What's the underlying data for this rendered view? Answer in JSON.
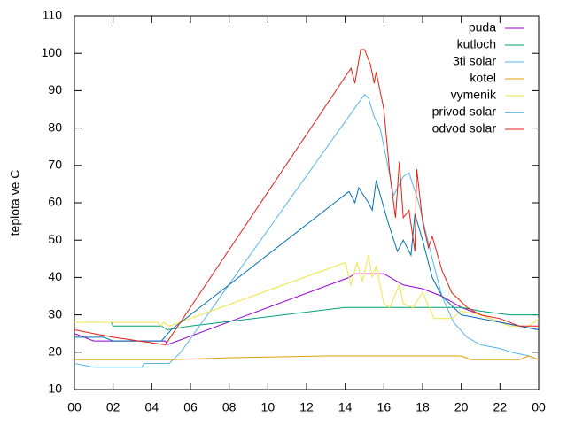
{
  "chart_data": {
    "type": "line",
    "y_label": "teplota ve C",
    "xlim": [
      0,
      24
    ],
    "xticks": [
      {
        "value": 0,
        "label": "00"
      },
      {
        "value": 2,
        "label": "02"
      },
      {
        "value": 4,
        "label": "04"
      },
      {
        "value": 6,
        "label": "06"
      },
      {
        "value": 8,
        "label": "08"
      },
      10,
      12,
      14,
      16,
      18,
      20,
      22,
      {
        "value": 24,
        "label": "00"
      }
    ],
    "ylim": [
      10,
      110
    ],
    "yticks": [
      10,
      20,
      30,
      40,
      50,
      60,
      70,
      80,
      90,
      100,
      110
    ],
    "legend": "top-right",
    "series": [
      {
        "name": "puda",
        "color": "#9400d3",
        "x": [
          0,
          0.5,
          1,
          4.7,
          4.8,
          14.2,
          14.5,
          16,
          17,
          18,
          19,
          20,
          21,
          22,
          23,
          24
        ],
        "values": [
          25,
          24,
          23,
          23,
          22,
          40,
          41,
          41,
          38,
          37,
          35,
          32,
          30,
          28,
          27,
          26
        ]
      },
      {
        "name": "kutloch",
        "color": "#009e73",
        "x": [
          0,
          1.9,
          2,
          4.5,
          4.8,
          6,
          14,
          20,
          21,
          22.5,
          24
        ],
        "values": [
          28,
          28,
          27,
          27,
          26,
          27,
          32,
          32,
          31,
          30,
          30
        ]
      },
      {
        "name": "3ti solar",
        "color": "#56b4e9",
        "x": [
          0,
          1,
          3.5,
          3.6,
          4.9,
          5.5,
          15,
          15.2,
          15.5,
          15.8,
          16.2,
          16.5,
          17,
          17.3,
          17.8,
          18.5,
          19,
          19.6,
          20.3,
          21,
          22,
          22.6,
          23.5,
          24
        ],
        "values": [
          17,
          16,
          16,
          17,
          17,
          20,
          89,
          88,
          83,
          80,
          70,
          62,
          67,
          68,
          60,
          45,
          35,
          28,
          24,
          22,
          21,
          20,
          19,
          18
        ]
      },
      {
        "name": "kotel",
        "color": "#e69f00",
        "x": [
          0,
          5,
          8,
          13,
          20,
          20.5,
          23,
          23.5,
          24
        ],
        "values": [
          18,
          18,
          18.5,
          19,
          19,
          18,
          18,
          19,
          18
        ]
      },
      {
        "name": "vymenik",
        "color": "#f0e442",
        "x": [
          0,
          4.3,
          4.5,
          4.6,
          4.9,
          14,
          14.3,
          14.6,
          14.9,
          15.2,
          15.4,
          15.6,
          16,
          16.3,
          16.8,
          17,
          17.5,
          18,
          18.6,
          19.5,
          20,
          21,
          22,
          22.5,
          23.5,
          24
        ],
        "values": [
          28,
          28,
          27,
          28,
          27,
          44,
          38,
          44,
          39,
          46,
          40,
          43,
          33,
          32,
          38,
          33,
          32,
          36,
          29,
          29,
          31,
          30,
          28,
          27,
          27,
          29
        ]
      },
      {
        "name": "privod solar",
        "color": "#0072b2",
        "x": [
          0,
          1.5,
          2,
          4.5,
          5,
          14.2,
          14.5,
          14.7,
          15.2,
          15.4,
          15.6,
          16.2,
          16.7,
          17,
          17.4,
          17.6,
          18,
          18.5,
          19,
          20,
          22,
          23,
          24
        ],
        "values": [
          24,
          24,
          23,
          23,
          26,
          63,
          60,
          64,
          60,
          58,
          66,
          55,
          47,
          50,
          46,
          57,
          50,
          40,
          35,
          30,
          28,
          27,
          26
        ]
      },
      {
        "name": "odvod solar",
        "color": "#e51e10",
        "x": [
          0,
          1,
          2,
          4.7,
          14.3,
          14.5,
          14.8,
          15,
          15.3,
          15.5,
          15.6,
          16,
          16.3,
          16.6,
          16.8,
          17,
          17.3,
          17.6,
          17.7,
          18,
          18.3,
          18.5,
          19,
          19.5,
          20.3,
          21,
          22,
          23,
          24
        ],
        "values": [
          26,
          25,
          24,
          22,
          96,
          92,
          101,
          101,
          97,
          92,
          95,
          85,
          68,
          56,
          71,
          56,
          58,
          47,
          69,
          55,
          48,
          51,
          42,
          36,
          32,
          30,
          29,
          27,
          27
        ]
      }
    ]
  }
}
